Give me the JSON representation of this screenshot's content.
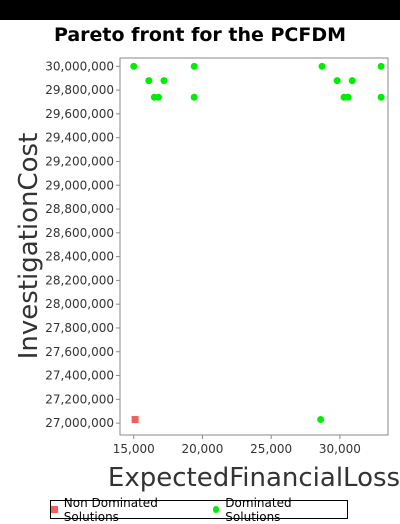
{
  "chart_data": {
    "type": "scatter",
    "title": "Pareto front for the PCFDM",
    "xlabel": "ExpectedFinancialLoss",
    "ylabel": "InvestigationCost",
    "xlim": [
      14000,
      33500
    ],
    "ylim": [
      26900000,
      30070000
    ],
    "x_ticks": [
      15000,
      20000,
      25000,
      30000
    ],
    "x_tick_labels": [
      "15,000",
      "20,000",
      "25,000",
      "30,000"
    ],
    "y_ticks": [
      27000000,
      27200000,
      27400000,
      27600000,
      27800000,
      28000000,
      28200000,
      28400000,
      28600000,
      28800000,
      29000000,
      29200000,
      29400000,
      29600000,
      29800000,
      30000000
    ],
    "y_tick_labels": [
      "27,000,000",
      "27,200,000",
      "27,400,000",
      "27,600,000",
      "27,800,000",
      "28,000,000",
      "28,200,000",
      "28,400,000",
      "28,600,000",
      "28,800,000",
      "29,000,000",
      "29,200,000",
      "29,400,000",
      "29,600,000",
      "29,800,000",
      "30,000,000"
    ],
    "grid": false,
    "legend": "bottom",
    "series": [
      {
        "name": "Non Dominated Solutions",
        "marker": "square",
        "color": "#f25f5c",
        "points": [
          [
            15100,
            27030000
          ]
        ]
      },
      {
        "name": "Dominated Solutions",
        "marker": "circle",
        "color": "#00ee00",
        "points": [
          [
            15000,
            30000000
          ],
          [
            19400,
            30000000
          ],
          [
            28700,
            30000000
          ],
          [
            33000,
            30000000
          ],
          [
            16100,
            29880000
          ],
          [
            17200,
            29880000
          ],
          [
            29800,
            29880000
          ],
          [
            30900,
            29880000
          ],
          [
            16500,
            29740000
          ],
          [
            16800,
            29740000
          ],
          [
            19400,
            29740000
          ],
          [
            30300,
            29740000
          ],
          [
            30600,
            29740000
          ],
          [
            33000,
            29740000
          ],
          [
            28600,
            27030000
          ]
        ]
      }
    ]
  }
}
